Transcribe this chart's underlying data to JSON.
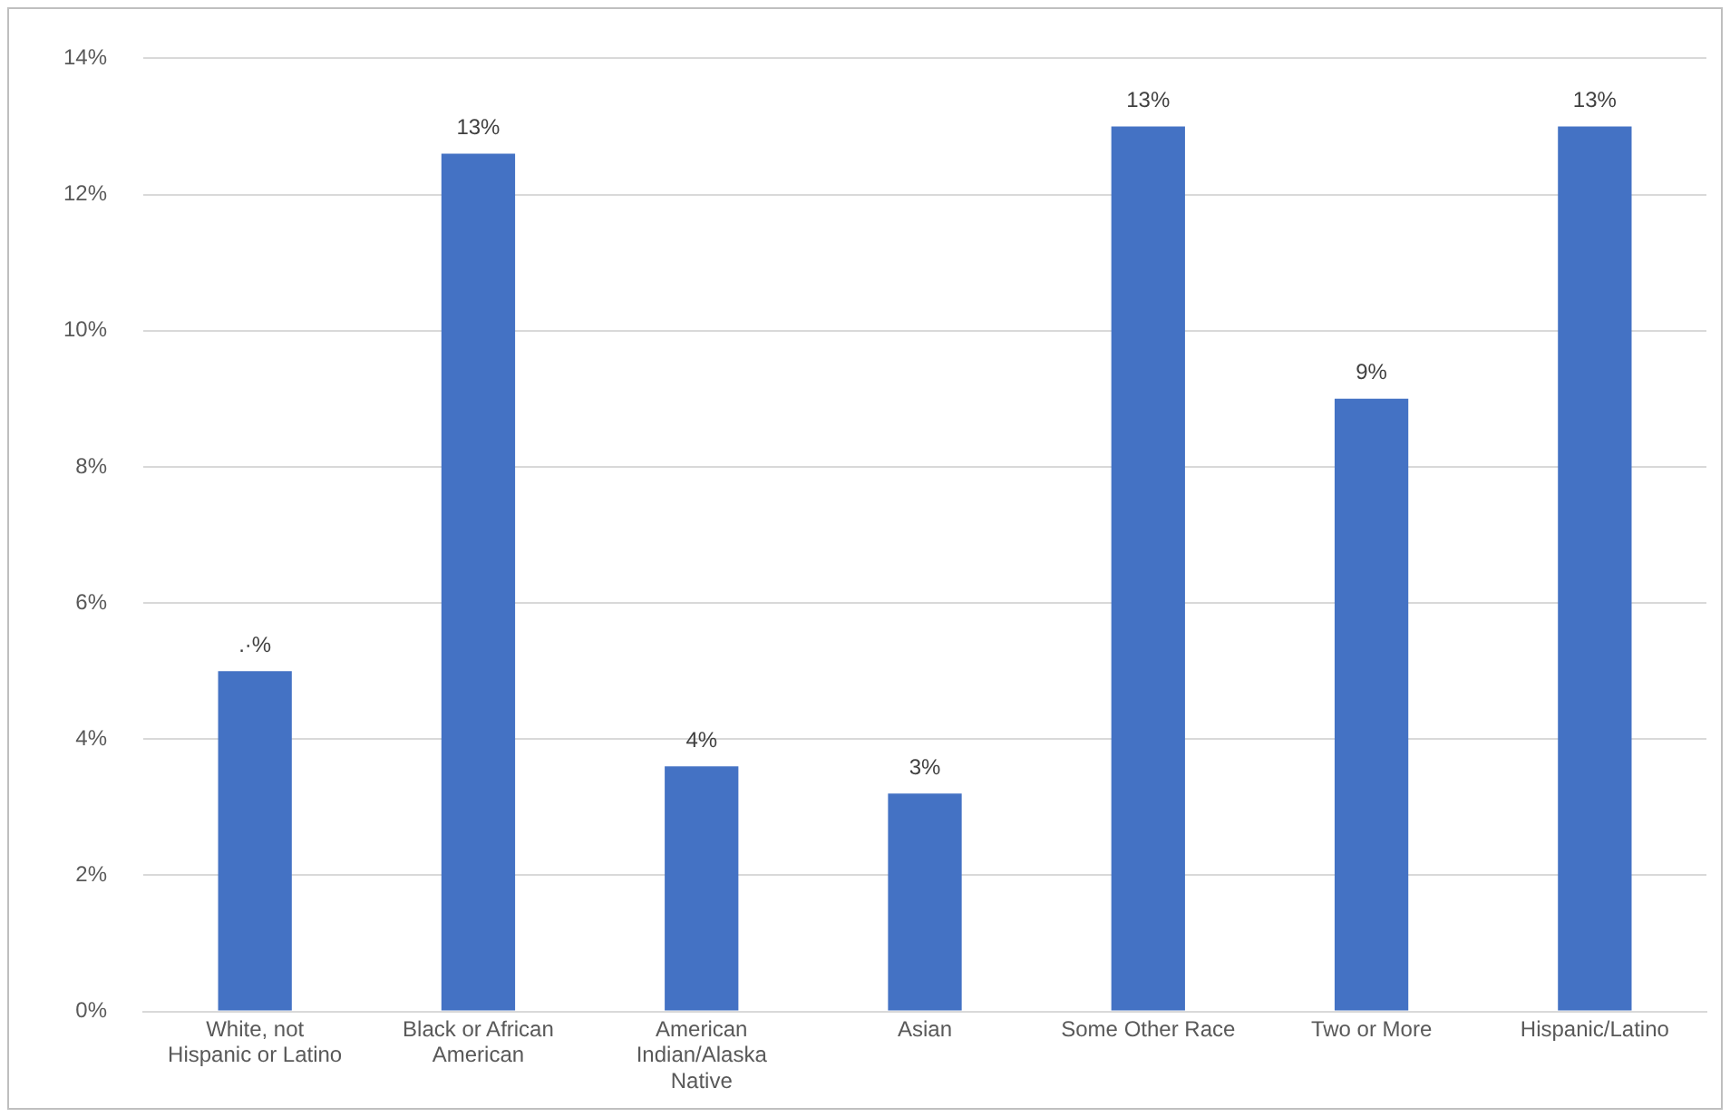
{
  "chart_data": {
    "type": "bar",
    "categories": [
      "White, not Hispanic or Latino",
      "Black or African American",
      "American Indian/Alaska Native",
      "Asian",
      "Some Other Race",
      "Two or More",
      "Hispanic/Latino"
    ],
    "values": [
      5.0,
      12.6,
      3.6,
      3.2,
      13.0,
      9.0,
      13.0
    ],
    "value_labels": [
      ".·%",
      "13%",
      "4%",
      "3%",
      "13%",
      "9%",
      "13%"
    ],
    "color": "#4472c4",
    "ylim": [
      0,
      14
    ],
    "yticks": [
      {
        "value": 0,
        "label": "0%"
      },
      {
        "value": 2,
        "label": "2%"
      },
      {
        "value": 4,
        "label": "4%"
      },
      {
        "value": 6,
        "label": "6%"
      },
      {
        "value": 8,
        "label": "8%"
      },
      {
        "value": 10,
        "label": "10%"
      },
      {
        "value": 12,
        "label": "12%"
      },
      {
        "value": 14,
        "label": "14%"
      }
    ],
    "grid": "y",
    "legend": false
  }
}
